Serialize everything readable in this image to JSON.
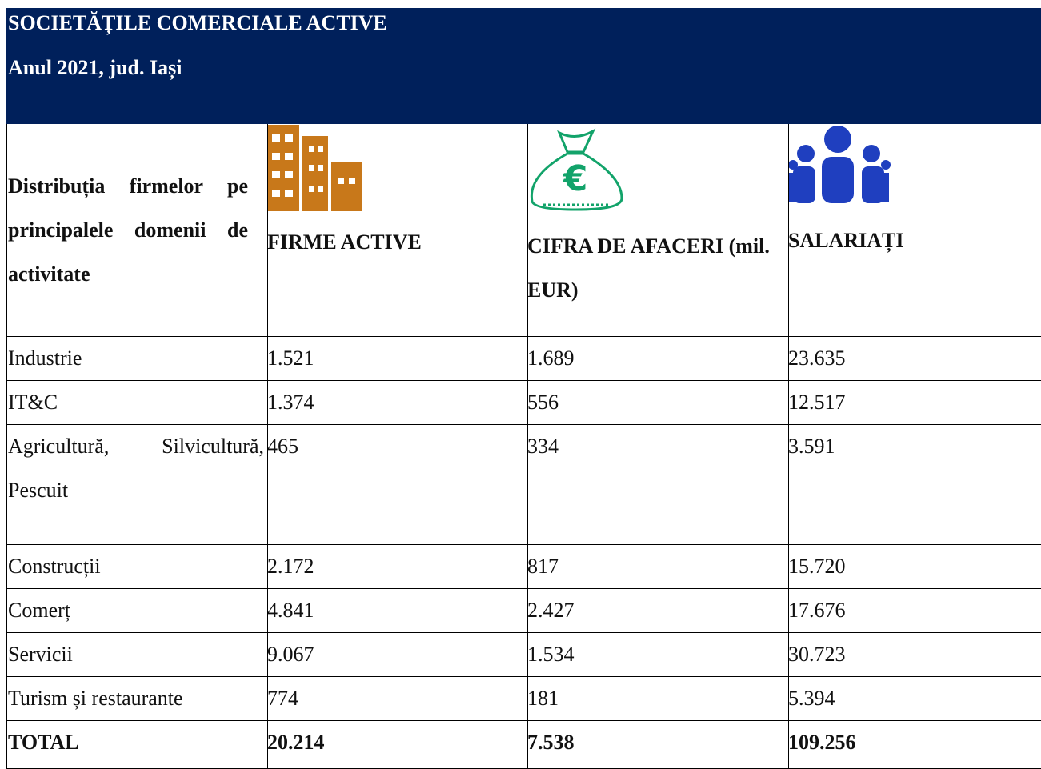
{
  "header": {
    "title": "SOCIETĂȚILE COMERCIALE ACTIVE",
    "subtitle": "Anul 2021, jud. Iași"
  },
  "table": {
    "columns": [
      "Distribuția firmelor pe principalele domenii de activitate",
      "FIRME ACTIVE",
      "CIFRA DE AFACERI (mil. EUR)",
      "SALARIAȚI"
    ],
    "rows": [
      [
        "Industrie",
        "1.521",
        "1.689",
        "23.635"
      ],
      [
        "IT&C",
        "1.374",
        "556",
        "12.517"
      ],
      [
        "Agricultură, Silvicultură, Pescuit",
        "465",
        "334",
        "3.591"
      ],
      [
        "Construcții",
        "2.172",
        "817",
        "15.720"
      ],
      [
        "Comerț",
        "4.841",
        "2.427",
        "17.676"
      ],
      [
        "Servicii",
        "9.067",
        "1.534",
        "30.723"
      ],
      [
        "Turism și restaurante",
        "774",
        "181",
        "5.394"
      ],
      [
        "TOTAL",
        "20.214",
        "7.538",
        "109.256"
      ]
    ]
  }
}
